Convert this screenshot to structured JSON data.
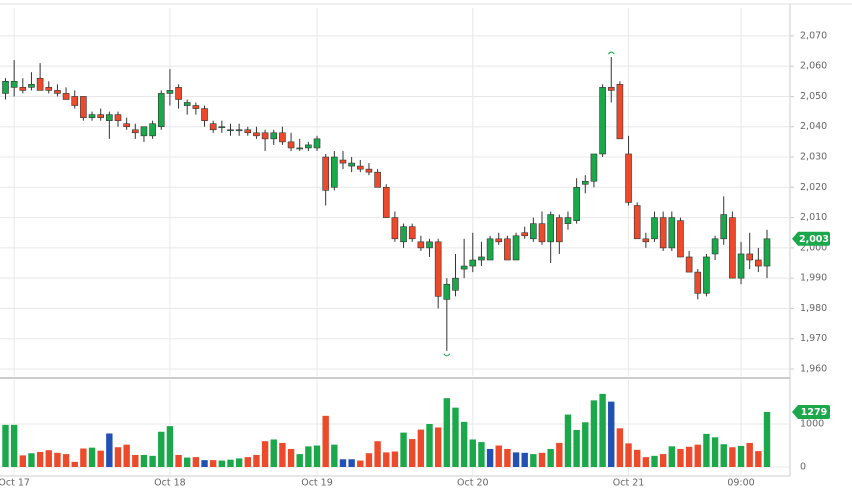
{
  "chart_data": {
    "type": "candlestick",
    "categories": [
      null,
      "Oct 17",
      null,
      null,
      null,
      null,
      null,
      null,
      null,
      null,
      null,
      null,
      null,
      null,
      null,
      null,
      null,
      null,
      null,
      "Oct 18",
      null,
      null,
      null,
      null,
      null,
      null,
      null,
      null,
      null,
      null,
      null,
      null,
      null,
      null,
      null,
      null,
      "Oct 19",
      null,
      null,
      null,
      null,
      null,
      null,
      null,
      null,
      null,
      null,
      null,
      null,
      null,
      null,
      null,
      null,
      null,
      "Oct 20",
      null,
      null,
      null,
      null,
      null,
      null,
      null,
      null,
      null,
      null,
      null,
      null,
      null,
      null,
      null,
      null,
      null,
      "Oct 21",
      null,
      null,
      null,
      null,
      null,
      null,
      null,
      null,
      null,
      null,
      null,
      null,
      "09:00",
      null,
      null,
      null
    ],
    "open": [
      2051,
      2053,
      2053,
      2053,
      2056,
      2053,
      2052,
      2051,
      2050,
      2050,
      2043,
      2044,
      2042,
      2044,
      2041,
      2039,
      2037,
      2037,
      2040,
      2051,
      2053,
      2047,
      2047,
      2046,
      2041,
      2040,
      2039,
      2039,
      2039,
      2038,
      2038,
      2036,
      2038,
      2035,
      2033,
      2033,
      2033,
      2030,
      2020,
      2029,
      2027,
      2027,
      2026,
      2025,
      2020,
      2010,
      2002,
      2007,
      2002,
      2000,
      2002,
      1983,
      1986,
      1993,
      1994,
      1996,
      1996,
      2003,
      2003,
      1996,
      2005,
      2003,
      2008,
      2002,
      2010,
      2008,
      2009,
      2021,
      2022,
      2031,
      2053,
      2054,
      2031,
      2014,
      2003,
      2003,
      2010,
      2000,
      2009,
      1997,
      1992,
      1985,
      1998,
      2003,
      2010,
      1990,
      1998,
      1996,
      1994
    ],
    "high": [
      2056,
      2062,
      2056,
      2058,
      2061,
      2055,
      2054,
      2053,
      2052,
      2050,
      2045,
      2046,
      2045,
      2045,
      2043,
      2041,
      2040,
      2042,
      2052,
      2059,
      2054,
      2049,
      2048,
      2047,
      2042,
      2042,
      2041,
      2041,
      2040,
      2040,
      2039,
      2039,
      2040,
      2038,
      2036,
      2035,
      2037,
      2031,
      2032,
      2032,
      2030,
      2029,
      2028,
      2026,
      2021,
      2012,
      2008,
      2008,
      2004,
      2003,
      2003,
      1990,
      1998,
      2003,
      2005,
      2002,
      2004,
      2005,
      2004,
      2005,
      2007,
      2010,
      2012,
      2012,
      2011,
      2012,
      2023,
      2024,
      2031,
      2054,
      2063,
      2055,
      2037,
      2015,
      2005,
      2012,
      2012,
      2012,
      2010,
      1999,
      1993,
      1998,
      2004,
      2017,
      2012,
      2002,
      2005,
      2000,
      2006
    ],
    "low": [
      2049,
      2050,
      2051,
      2052,
      2052,
      2051,
      2050,
      2049,
      2046,
      2042,
      2042,
      2042,
      2036,
      2040,
      2039,
      2036,
      2035,
      2036,
      2039,
      2047,
      2046,
      2044,
      2044,
      2040,
      2038,
      2038,
      2037,
      2037,
      2037,
      2036,
      2032,
      2034,
      2034,
      2032,
      2032,
      2032,
      2032,
      2014,
      2019,
      2026,
      2025,
      2025,
      2024,
      2020,
      2010,
      2002,
      2000,
      2002,
      1999,
      1997,
      1980,
      1966,
      1984,
      1990,
      1992,
      1994,
      1996,
      2001,
      1996,
      1996,
      2003,
      2002,
      2001,
      1995,
      1998,
      2006,
      2008,
      2018,
      2020,
      2030,
      2048,
      2036,
      2014,
      2003,
      2000,
      2002,
      1999,
      1999,
      1997,
      1992,
      1983,
      1984,
      1996,
      2001,
      1990,
      1988,
      1993,
      1992,
      1990
    ],
    "close": [
      2055,
      2055,
      2052,
      2054,
      2052,
      2052,
      2051,
      2049,
      2047,
      2043,
      2044,
      2043,
      2044,
      2042,
      2040,
      2038,
      2040,
      2041,
      2051,
      2052,
      2049,
      2048,
      2046,
      2042,
      2039,
      2040,
      2039,
      2039,
      2038,
      2037,
      2036,
      2038,
      2035,
      2033,
      2033,
      2034,
      2036,
      2019,
      2030,
      2028,
      2028,
      2026,
      2025,
      2020,
      2010,
      2003,
      2007,
      2003,
      2000,
      2002,
      1984,
      1988,
      1990,
      1994,
      1996,
      1997,
      2003,
      2002,
      1996,
      2004,
      2004,
      2008,
      2002,
      2011,
      2002,
      2010,
      2020,
      2022,
      2031,
      2053,
      2052,
      2036,
      2015,
      2003,
      2002,
      2010,
      2000,
      2010,
      1997,
      1992,
      1985,
      1997,
      2003,
      2011,
      1990,
      1998,
      1996,
      1994,
      2003
    ],
    "up_color": "#1aa84b",
    "down_color": "#ec4a2b",
    "ylim": [
      1957.7,
      2079.2
    ],
    "yticks": [
      {
        "value": 1960,
        "label": "1,960"
      },
      {
        "value": 1970,
        "label": "1,970"
      },
      {
        "value": 1980,
        "label": "1,980"
      },
      {
        "value": 1990,
        "label": "1,990"
      },
      {
        "value": 2000,
        "label": "2,000"
      },
      {
        "value": 2010,
        "label": "2,010"
      },
      {
        "value": 2020,
        "label": "2,020"
      },
      {
        "value": 2030,
        "label": "2,030"
      },
      {
        "value": 2040,
        "label": "2,040"
      },
      {
        "value": 2050,
        "label": "2,050"
      },
      {
        "value": 2060,
        "label": "2,060"
      },
      {
        "value": 2070,
        "label": "2,070"
      }
    ],
    "grid": true,
    "last_value_label": "2,003",
    "volume": {
      "values": [
        980,
        980,
        270,
        320,
        350,
        390,
        330,
        300,
        120,
        430,
        450,
        380,
        780,
        460,
        520,
        280,
        280,
        260,
        820,
        950,
        280,
        220,
        230,
        160,
        160,
        150,
        170,
        200,
        230,
        280,
        600,
        640,
        560,
        420,
        300,
        480,
        500,
        1190,
        520,
        180,
        180,
        150,
        320,
        600,
        340,
        360,
        800,
        650,
        870,
        1000,
        920,
        1600,
        1380,
        1050,
        640,
        580,
        420,
        500,
        420,
        340,
        330,
        300,
        330,
        420,
        560,
        1220,
        860,
        1040,
        1550,
        1700,
        1520,
        900,
        550,
        400,
        230,
        260,
        300,
        480,
        420,
        470,
        520,
        770,
        690,
        530,
        460,
        490,
        560,
        370,
        1279
      ],
      "colors": [
        "#1aa84b",
        "#1aa84b",
        "#ec4a2b",
        "#1aa84b",
        "#ec4a2b",
        "#ec4a2b",
        "#ec4a2b",
        "#ec4a2b",
        "#ec4a2b",
        "#ec4a2b",
        "#1aa84b",
        "#ec4a2b",
        "#2350b5",
        "#ec4a2b",
        "#ec4a2b",
        "#ec4a2b",
        "#1aa84b",
        "#1aa84b",
        "#1aa84b",
        "#1aa84b",
        "#ec4a2b",
        "#1aa84b",
        "#ec4a2b",
        "#2350b5",
        "#ec4a2b",
        "#1aa84b",
        "#1aa84b",
        "#1aa84b",
        "#ec4a2b",
        "#ec4a2b",
        "#ec4a2b",
        "#1aa84b",
        "#ec4a2b",
        "#ec4a2b",
        "#1aa84b",
        "#1aa84b",
        "#1aa84b",
        "#ec4a2b",
        "#1aa84b",
        "#2350b5",
        "#2350b5",
        "#ec4a2b",
        "#ec4a2b",
        "#ec4a2b",
        "#ec4a2b",
        "#ec4a2b",
        "#1aa84b",
        "#ec4a2b",
        "#ec4a2b",
        "#1aa84b",
        "#ec4a2b",
        "#1aa84b",
        "#1aa84b",
        "#1aa84b",
        "#1aa84b",
        "#1aa84b",
        "#2350b5",
        "#ec4a2b",
        "#ec4a2b",
        "#2350b5",
        "#2350b5",
        "#1aa84b",
        "#ec4a2b",
        "#1aa84b",
        "#ec4a2b",
        "#1aa84b",
        "#1aa84b",
        "#1aa84b",
        "#1aa84b",
        "#1aa84b",
        "#2350b5",
        "#ec4a2b",
        "#ec4a2b",
        "#ec4a2b",
        "#ec4a2b",
        "#1aa84b",
        "#ec4a2b",
        "#1aa84b",
        "#ec4a2b",
        "#ec4a2b",
        "#ec4a2b",
        "#1aa84b",
        "#1aa84b",
        "#1aa84b",
        "#ec4a2b",
        "#1aa84b",
        "#ec4a2b",
        "#ec4a2b",
        "#1aa84b"
      ],
      "ylim": [
        -209,
        2023
      ],
      "yticks": [
        0,
        1000
      ],
      "last_value_label": "1279"
    }
  }
}
